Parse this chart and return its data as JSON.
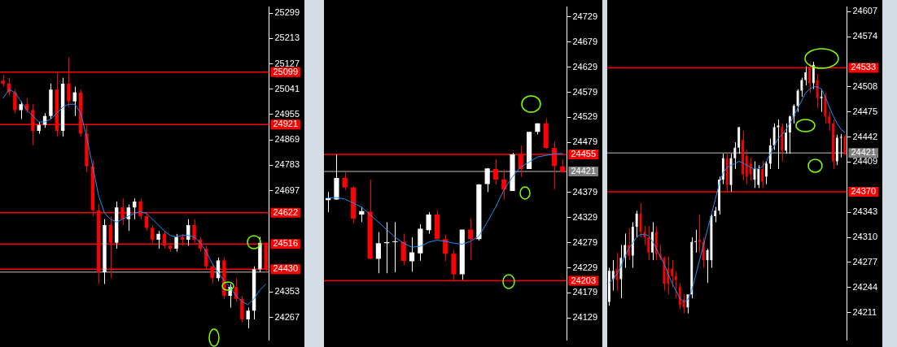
{
  "chart_data": [
    {
      "type": "candlestick",
      "categories": [
        null,
        null,
        null,
        null,
        null,
        null,
        null,
        null,
        null,
        null,
        null,
        null,
        null,
        null,
        null,
        null,
        null,
        null,
        null,
        null,
        null,
        null,
        null,
        null,
        null,
        null,
        null,
        null,
        null,
        null,
        null,
        null,
        null,
        null,
        null,
        null,
        null,
        null,
        null,
        null,
        null,
        null,
        null,
        null,
        null
      ],
      "ohlc": [
        [
          25070,
          25090,
          25050,
          25060
        ],
        [
          25060,
          25080,
          25020,
          25030
        ],
        [
          25030,
          25040,
          24960,
          24970
        ],
        [
          24970,
          25000,
          24940,
          24990
        ],
        [
          24990,
          25010,
          24960,
          24970
        ],
        [
          24970,
          24990,
          24850,
          24900
        ],
        [
          24900,
          24930,
          24890,
          24920
        ],
        [
          24920,
          24960,
          24910,
          24950
        ],
        [
          24950,
          25060,
          24940,
          25040
        ],
        [
          25040,
          25100,
          24880,
          24900
        ],
        [
          24900,
          25080,
          24880,
          25060
        ],
        [
          25060,
          25150,
          24980,
          25000
        ],
        [
          25000,
          25050,
          24950,
          25030
        ],
        [
          25030,
          25040,
          24880,
          24890
        ],
        [
          24890,
          24920,
          24760,
          24780
        ],
        [
          24780,
          24800,
          24610,
          24630
        ],
        [
          24630,
          24650,
          24380,
          24420
        ],
        [
          24420,
          24600,
          24380,
          24580
        ],
        [
          24580,
          24610,
          24400,
          24520
        ],
        [
          24520,
          24660,
          24500,
          24640
        ],
        [
          24640,
          24670,
          24580,
          24600
        ],
        [
          24600,
          24650,
          24560,
          24640
        ],
        [
          24640,
          24670,
          24600,
          24660
        ],
        [
          24660,
          24670,
          24600,
          24610
        ],
        [
          24610,
          24620,
          24560,
          24570
        ],
        [
          24570,
          24580,
          24520,
          24530
        ],
        [
          24530,
          24560,
          24500,
          24550
        ],
        [
          24550,
          24560,
          24500,
          24510
        ],
        [
          24510,
          24520,
          24490,
          24500
        ],
        [
          24500,
          24550,
          24490,
          24540
        ],
        [
          24540,
          24550,
          24510,
          24530
        ],
        [
          24530,
          24600,
          24510,
          24580
        ],
        [
          24580,
          24600,
          24520,
          24530
        ],
        [
          24530,
          24540,
          24490,
          24500
        ],
        [
          24500,
          24510,
          24430,
          24440
        ],
        [
          24440,
          24450,
          24380,
          24400
        ],
        [
          24400,
          24470,
          24390,
          24460
        ],
        [
          24460,
          24470,
          24330,
          24340
        ],
        [
          24340,
          24380,
          24300,
          24370
        ],
        [
          24370,
          24400,
          24320,
          24330
        ],
        [
          24330,
          24340,
          24250,
          24260
        ],
        [
          24260,
          24300,
          24230,
          24290
        ],
        [
          24290,
          24440,
          24260,
          24430
        ],
        [
          24430,
          24540,
          24420,
          24520
        ],
        [
          24520,
          24520,
          24420,
          24430
        ]
      ],
      "series": [
        {
          "type": "line",
          "color": "#1e90ff",
          "values": [
            25010,
            25040,
            25030,
            25000,
            24970,
            24950,
            24930,
            24930,
            24940,
            24960,
            24980,
            24990,
            24990,
            24960,
            24880,
            24780,
            24680,
            24620,
            24600,
            24590,
            24600,
            24610,
            24620,
            24625,
            24620,
            24600,
            24580,
            24560,
            24545,
            24540,
            24545,
            24545,
            24540,
            24520,
            24490,
            24450,
            24420,
            24390,
            24370,
            24340,
            24320,
            24310,
            24330,
            24360,
            24380
          ]
        }
      ],
      "ylim": [
        24190,
        25320
      ],
      "yticks": [
        25299,
        25213,
        25127,
        25041,
        24955,
        24869,
        24783,
        24697,
        24353,
        24267
      ],
      "ref_lines": [
        {
          "axis": "y",
          "value": 25099,
          "label": "25099",
          "color": "#ff0000"
        },
        {
          "axis": "y",
          "value": 24921,
          "label": "24921",
          "color": "#ff0000"
        },
        {
          "axis": "y",
          "value": 24622,
          "label": "24622",
          "color": "#ff0000"
        },
        {
          "axis": "y",
          "value": 24516,
          "label": "24516",
          "color": "#ff0000"
        },
        {
          "axis": "y",
          "value": 24430,
          "label": "24430",
          "color": "#ff0000"
        },
        {
          "axis": "y",
          "value": 24421,
          "color": "#808080"
        }
      ],
      "tick_labels": "y",
      "grid": false,
      "legend": false
    },
    {
      "type": "candlestick",
      "categories": [
        null,
        null,
        null,
        null,
        null,
        null,
        null,
        null,
        null,
        null,
        null,
        null,
        null,
        null,
        null,
        null,
        null,
        null,
        null,
        null,
        null,
        null,
        null,
        null,
        null,
        null,
        null,
        null,
        null
      ],
      "ohlc": [
        [
          24364,
          24380,
          24340,
          24368
        ],
        [
          24365,
          24455,
          24365,
          24408
        ],
        [
          24408,
          24420,
          24384,
          24389
        ],
        [
          24389,
          24392,
          24318,
          24327
        ],
        [
          24335,
          24350,
          24320,
          24342
        ],
        [
          24341,
          24405,
          24246,
          24247
        ],
        [
          24247,
          24300,
          24218,
          24278
        ],
        [
          24278,
          24320,
          24218,
          24280
        ],
        [
          24280,
          24320,
          24220,
          24281
        ],
        [
          24281,
          24297,
          24234,
          24243
        ],
        [
          24242,
          24290,
          24221,
          24260
        ],
        [
          24258,
          24316,
          24243,
          24307
        ],
        [
          24304,
          24340,
          24297,
          24335
        ],
        [
          24335,
          24344,
          24286,
          24286
        ],
        [
          24286,
          24295,
          24242,
          24257
        ],
        [
          24257,
          24265,
          24203,
          24216
        ],
        [
          24216,
          24305,
          24205,
          24305
        ],
        [
          24305,
          24327,
          24245,
          24286
        ],
        [
          24286,
          24396,
          24283,
          24395
        ],
        [
          24396,
          24428,
          24380,
          24427
        ],
        [
          24426,
          24446,
          24395,
          24405
        ],
        [
          24405,
          24425,
          24365,
          24385
        ],
        [
          24382,
          24458,
          24382,
          24455
        ],
        [
          24455,
          24473,
          24410,
          24426
        ],
        [
          24426,
          24500,
          24426,
          24500
        ],
        [
          24500,
          24517,
          24495,
          24517
        ],
        [
          24517,
          24527,
          24466,
          24468
        ],
        [
          24468,
          24481,
          24385,
          24432
        ],
        [
          24431,
          24445,
          24420,
          24420
        ]
      ],
      "series": [
        {
          "type": "line",
          "color": "#1e90ff",
          "values": [
            24368,
            24369,
            24366,
            24358,
            24350,
            24335,
            24320,
            24305,
            24290,
            24278,
            24270,
            24272,
            24280,
            24284,
            24282,
            24278,
            24276,
            24282,
            24292,
            24320,
            24350,
            24385,
            24410,
            24430,
            24440,
            24450,
            24453,
            24456,
            24457
          ]
        }
      ],
      "ylim": [
        24085,
        24749
      ],
      "yticks": [
        24729,
        24679,
        24629,
        24579,
        24529,
        24479,
        24379,
        24329,
        24279,
        24229,
        24179,
        24129
      ],
      "ref_lines": [
        {
          "axis": "y",
          "value": 24455,
          "label": "24455",
          "color": "#ff0000"
        },
        {
          "axis": "y",
          "value": 24203,
          "label": "24203",
          "color": "#ff0000"
        },
        {
          "axis": "y",
          "value": 24421,
          "label": "24421",
          "color": "#808080"
        }
      ],
      "tick_labels": "y",
      "grid": false,
      "legend": false
    },
    {
      "type": "candlestick",
      "categories": [
        null,
        null,
        null,
        null,
        null,
        null,
        null,
        null,
        null,
        null,
        null,
        null,
        null,
        null,
        null,
        null,
        null,
        null,
        null,
        null,
        null,
        null,
        null,
        null,
        null,
        null,
        null,
        null,
        null,
        null,
        null,
        null,
        null,
        null,
        null,
        null,
        null,
        null,
        null,
        null,
        null,
        null,
        null,
        null,
        null,
        null,
        null,
        null,
        null,
        null,
        null,
        null,
        null,
        null,
        null,
        null,
        null,
        null,
        null,
        null,
        null
      ],
      "ohlc": [
        [
          24225,
          24270,
          24220,
          24266
        ],
        [
          24255,
          24280,
          24240,
          24266
        ],
        [
          24269,
          24290,
          24240,
          24254
        ],
        [
          24255,
          24300,
          24230,
          24283
        ],
        [
          24283,
          24315,
          24270,
          24300
        ],
        [
          24300,
          24322,
          24280,
          24286
        ],
        [
          24286,
          24330,
          24270,
          24324
        ],
        [
          24324,
          24345,
          24310,
          24341
        ],
        [
          24341,
          24355,
          24310,
          24317
        ],
        [
          24317,
          24325,
          24300,
          24310
        ],
        [
          24310,
          24325,
          24280,
          24290
        ],
        [
          24290,
          24330,
          24280,
          24317
        ],
        [
          24317,
          24325,
          24280,
          24288
        ],
        [
          24288,
          24300,
          24280,
          24283
        ],
        [
          24283,
          24285,
          24240,
          24249
        ],
        [
          24269,
          24285,
          24235,
          24249
        ],
        [
          24269,
          24280,
          24245,
          24259
        ],
        [
          24259,
          24265,
          24230,
          24254
        ],
        [
          24245,
          24250,
          24215,
          24221
        ],
        [
          24228,
          24235,
          24210,
          24218
        ],
        [
          24218,
          24235,
          24210,
          24235
        ],
        [
          24235,
          24310,
          24230,
          24304
        ],
        [
          24304,
          24320,
          24290,
          24305
        ],
        [
          24307,
          24340,
          24290,
          24304
        ],
        [
          24304,
          24310,
          24270,
          24280
        ],
        [
          24280,
          24295,
          24250,
          24293
        ],
        [
          24280,
          24340,
          24270,
          24338
        ],
        [
          24338,
          24350,
          24330,
          24345
        ],
        [
          24345,
          24390,
          24340,
          24386
        ],
        [
          24386,
          24420,
          24380,
          24414
        ],
        [
          24414,
          24420,
          24370,
          24379
        ],
        [
          24379,
          24420,
          24370,
          24414
        ],
        [
          24414,
          24435,
          24400,
          24428
        ],
        [
          24428,
          24455,
          24420,
          24455
        ],
        [
          24438,
          24450,
          24385,
          24393
        ],
        [
          24417,
          24425,
          24380,
          24390
        ],
        [
          24407,
          24415,
          24385,
          24393
        ],
        [
          24386,
          24410,
          24375,
          24400
        ],
        [
          24379,
          24405,
          24375,
          24400
        ],
        [
          24400,
          24410,
          24375,
          24383
        ],
        [
          24390,
          24410,
          24380,
          24407
        ],
        [
          24407,
          24440,
          24400,
          24431
        ],
        [
          24431,
          24460,
          24425,
          24455
        ],
        [
          24455,
          24465,
          24400,
          24457
        ],
        [
          24455,
          24460,
          24410,
          24424
        ],
        [
          24424,
          24460,
          24420,
          24448
        ],
        [
          24448,
          24470,
          24420,
          24469
        ],
        [
          24469,
          24485,
          24460,
          24483
        ],
        [
          24483,
          24505,
          24475,
          24503
        ],
        [
          24503,
          24520,
          24495,
          24517
        ],
        [
          24517,
          24535,
          24510,
          24527
        ],
        [
          24534,
          24540,
          24500,
          24513
        ],
        [
          24513,
          24541,
          24505,
          24537
        ],
        [
          24517,
          24525,
          24480,
          24493
        ],
        [
          24493,
          24505,
          24475,
          24495
        ],
        [
          24495,
          24500,
          24460,
          24469
        ],
        [
          24469,
          24475,
          24450,
          24460
        ],
        [
          24460,
          24465,
          24400,
          24410
        ],
        [
          24410,
          24445,
          24405,
          24441
        ],
        [
          24441,
          24446,
          24415,
          24442
        ],
        [
          24443,
          24445,
          24418,
          24419
        ]
      ],
      "series": [
        {
          "type": "line",
          "color": "#1e90ff",
          "values": [
            24250,
            24255,
            24262,
            24272,
            24285,
            24295,
            24303,
            24310,
            24314,
            24314,
            24312,
            24305,
            24295,
            24285,
            24275,
            24262,
            24250,
            24240,
            24230,
            24225,
            24228,
            24240,
            24260,
            24280,
            24300,
            24320,
            24340,
            24360,
            24380,
            24395,
            24402,
            24405,
            24407,
            24410,
            24408,
            24405,
            24402,
            24400,
            24400,
            24403,
            24410,
            24420,
            24430,
            24440,
            24445,
            24452,
            24460,
            24470,
            24480,
            24490,
            24500,
            24505,
            24508,
            24508,
            24505,
            24495,
            24482,
            24470,
            24460,
            24452,
            24448
          ]
        }
      ],
      "ylim": [
        24175,
        24613
      ],
      "yticks": [
        24607,
        24574,
        24508,
        24475,
        24442,
        24409,
        24343,
        24310,
        24277,
        24244,
        24211
      ],
      "ref_lines": [
        {
          "axis": "y",
          "value": 24533,
          "label": "24533",
          "color": "#ff0000"
        },
        {
          "axis": "y",
          "value": 24370,
          "label": "24370",
          "color": "#ff0000"
        },
        {
          "axis": "y",
          "value": 24421,
          "label": "24421",
          "color": "#808080"
        }
      ],
      "tick_labels": "y",
      "grid": false,
      "legend": false
    }
  ]
}
